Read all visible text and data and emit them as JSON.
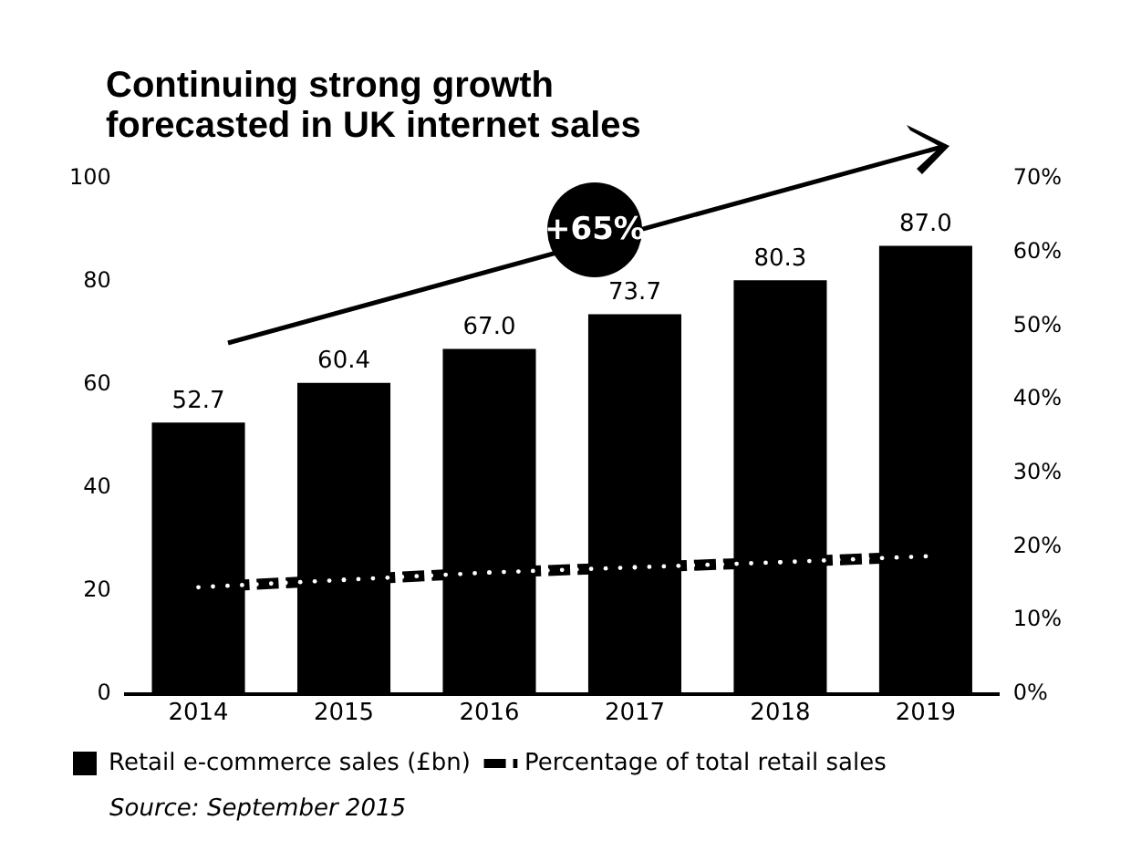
{
  "chart_data": {
    "type": "bar",
    "title": "Continuing strong growth forecasted in UK internet sales",
    "categories": [
      "2014",
      "2015",
      "2016",
      "2017",
      "2018",
      "2019"
    ],
    "series": [
      {
        "name": "Retail e-commerce sales (£bn)",
        "color": "#000000",
        "values": [
          52.7,
          60.4,
          67.0,
          73.7,
          80.3,
          87.0
        ],
        "value_labels": [
          "52.7",
          "60.4",
          "67.0",
          "73.7",
          "80.3",
          "87.0"
        ]
      },
      {
        "name": "Percentage of total retail sales",
        "type": "line",
        "axis": "y2",
        "color": "#000000",
        "line_style": "dashed",
        "values": [
          14.5,
          15.5,
          16.5,
          17.2,
          17.9,
          18.7
        ]
      }
    ],
    "ylim": [
      0,
      100
    ],
    "yticks": [
      0,
      20,
      40,
      60,
      80,
      100
    ],
    "y2lim": [
      0,
      70
    ],
    "y2ticks": [
      {
        "value": 0,
        "label": "0%"
      },
      {
        "value": 10,
        "label": "10%"
      },
      {
        "value": 20,
        "label": "20%"
      },
      {
        "value": 30,
        "label": "30%"
      },
      {
        "value": 40,
        "label": "40%"
      },
      {
        "value": 50,
        "label": "50%"
      },
      {
        "value": 60,
        "label": "60%"
      },
      {
        "value": 70,
        "label": "70%"
      }
    ],
    "grid": false,
    "legend": "bottom",
    "annotations": [
      "+65%",
      "Source: September 2015"
    ]
  }
}
